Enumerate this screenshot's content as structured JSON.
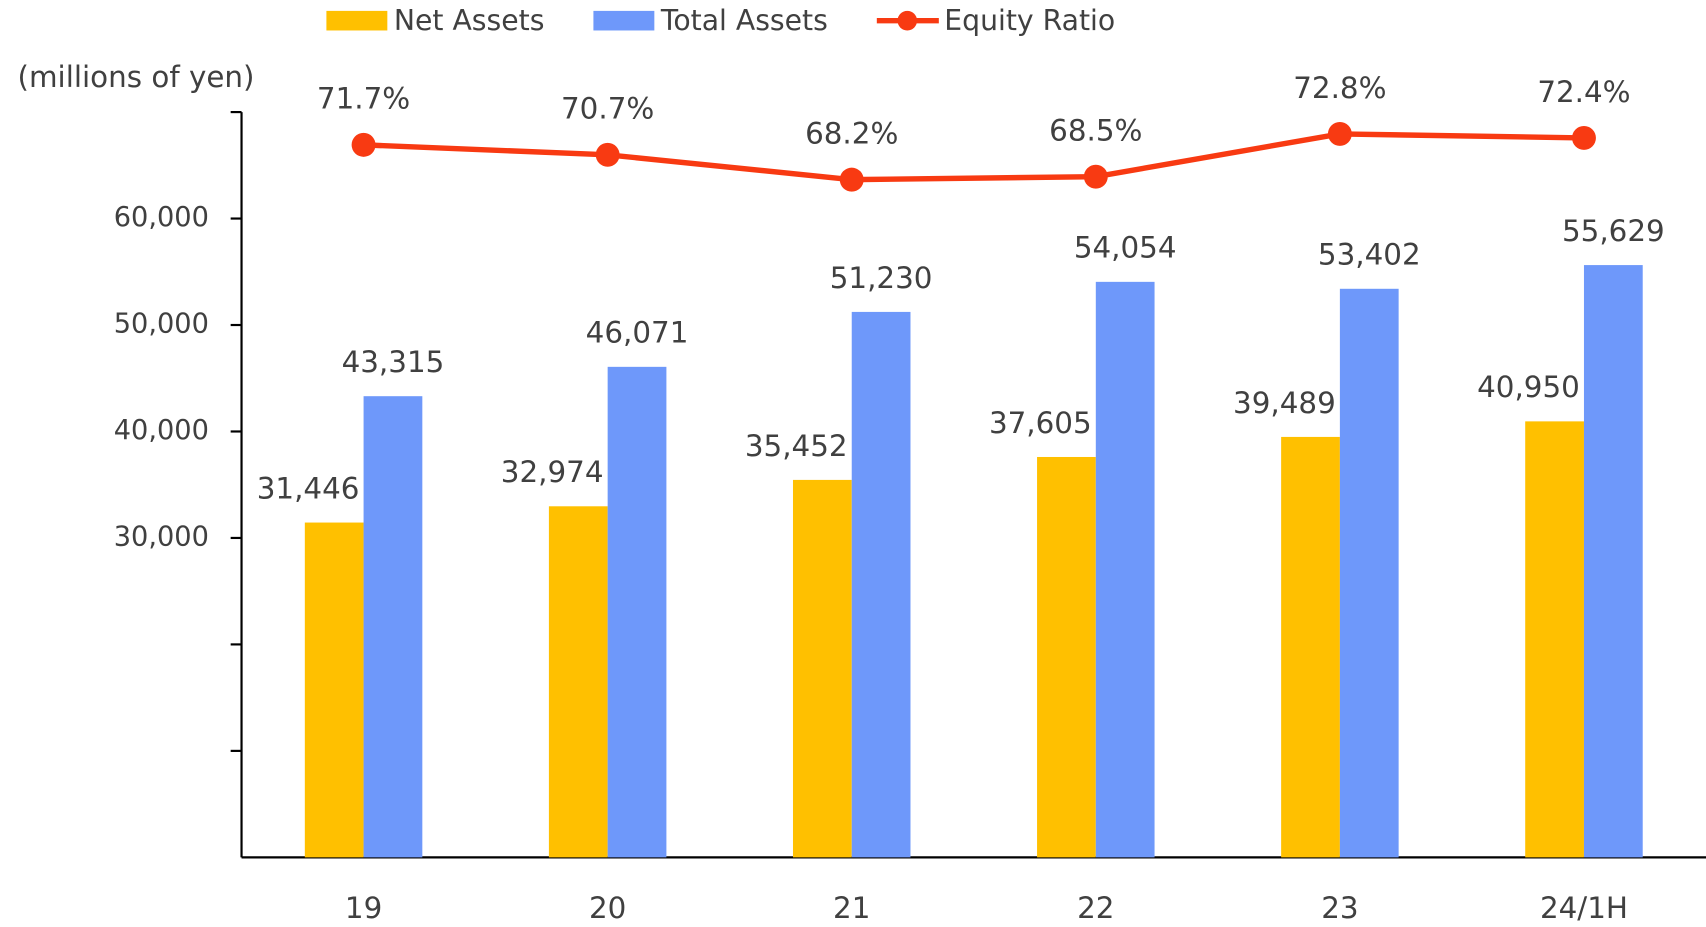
{
  "chart_data": {
    "type": "bar",
    "y_axis_label": "(millions of yen)",
    "categories": [
      "19",
      "20",
      "21",
      "22",
      "23",
      "24/1H"
    ],
    "series": [
      {
        "name": "Net Assets",
        "color": "#ffc000",
        "values": [
          31446,
          32974,
          35452,
          37605,
          39489,
          40950
        ],
        "value_labels": [
          "31,446",
          "32,974",
          "35,452",
          "37,605",
          "39,489",
          "40,950"
        ]
      },
      {
        "name": "Total Assets",
        "color": "#6e98fa",
        "values": [
          43315,
          46071,
          51230,
          54054,
          53402,
          55629
        ],
        "value_labels": [
          "43,315",
          "46,071",
          "51,230",
          "54,054",
          "53,402",
          "55,629"
        ]
      },
      {
        "name": "Equity Ratio",
        "type": "line",
        "axis": "y2",
        "color": "#f83a12",
        "values": [
          71.7,
          70.7,
          68.2,
          68.5,
          72.8,
          72.4
        ],
        "value_labels": [
          "71.7%",
          "70.7%",
          "68.2%",
          "68.5%",
          "72.8%",
          "72.4%"
        ]
      }
    ],
    "ylim": [
      0,
      70000
    ],
    "yticks": [
      {
        "value": 30000,
        "label": "30,000"
      },
      {
        "value": 40000,
        "label": "40,000"
      },
      {
        "value": 50000,
        "label": "50,000"
      },
      {
        "value": 60000,
        "label": "60,000"
      }
    ],
    "yminorticks": [
      10000,
      20000
    ],
    "y2lim": [
      0,
      75
    ],
    "grid": false,
    "legend": "top"
  }
}
